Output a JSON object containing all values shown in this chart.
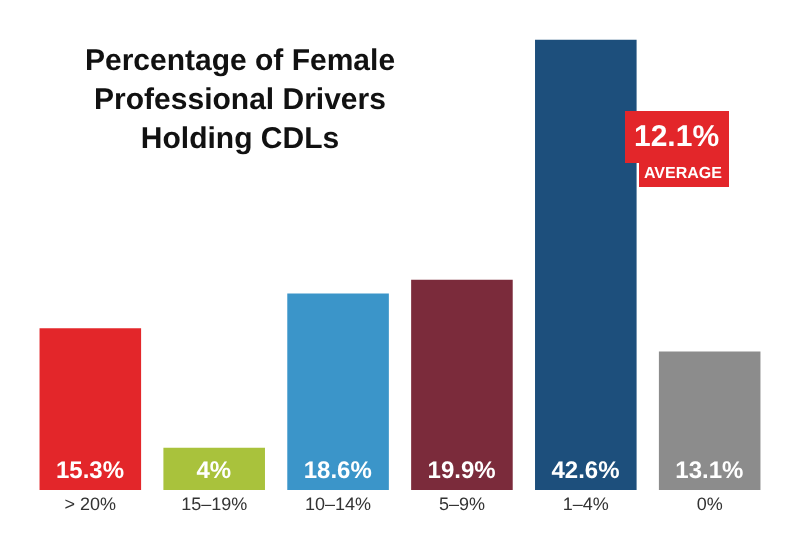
{
  "chart_data": {
    "type": "bar",
    "title": "Percentage of Female\nProfessional Drivers\nHolding CDLs",
    "categories": [
      "> 20%",
      "15–19%",
      "10–14%",
      "5–9%",
      "1–4%",
      "0%"
    ],
    "values": [
      15.3,
      4,
      18.6,
      19.9,
      42.6,
      13.1
    ],
    "colors": [
      "#e3262a",
      "#a9c23c",
      "#3b95c9",
      "#7b2b3b",
      "#1d4f7c",
      "#8c8c8c"
    ],
    "value_labels": [
      "15.3%",
      "4%",
      "18.6%",
      "19.9%",
      "42.6%",
      "13.1%"
    ],
    "annotations": [
      "12.1%",
      "AVERAGE"
    ],
    "legend": false
  }
}
